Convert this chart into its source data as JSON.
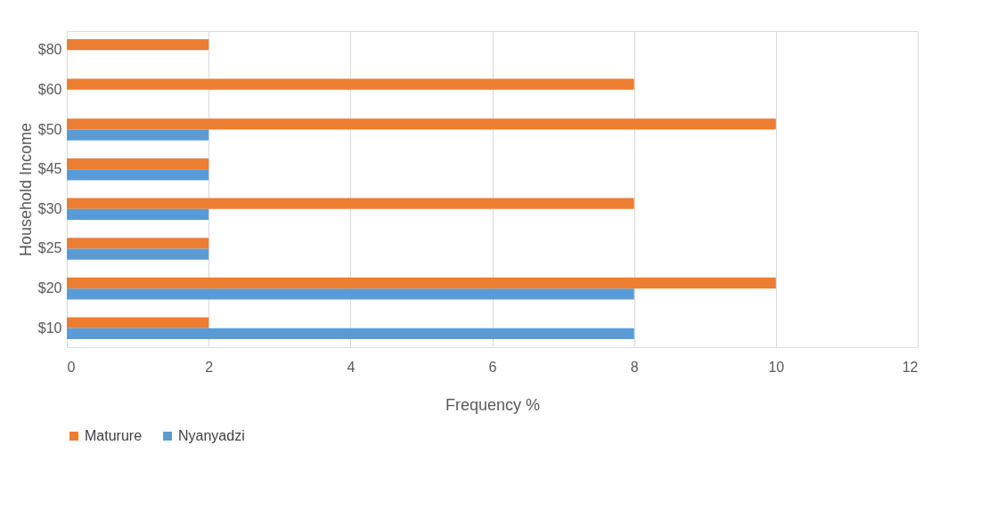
{
  "chart_data": {
    "type": "bar",
    "orientation": "horizontal",
    "xlabel": "Frequency %",
    "ylabel": "Household Income",
    "categories": [
      "$80",
      "$60",
      "$50",
      "$45",
      "$30",
      "$25",
      "$20",
      "$10"
    ],
    "series": [
      {
        "name": "Maturure",
        "color": "#ed7d31",
        "values": [
          2,
          8,
          10,
          2,
          8,
          2,
          10,
          2
        ]
      },
      {
        "name": "Nyanyadzi",
        "color": "#5b9bd5",
        "values": [
          null,
          null,
          2,
          2,
          2,
          2,
          8,
          8
        ]
      }
    ],
    "xlim": [
      0,
      12
    ],
    "xticks": [
      0,
      2,
      4,
      6,
      8,
      10,
      12
    ],
    "grid": "x",
    "legend": "bottom"
  }
}
